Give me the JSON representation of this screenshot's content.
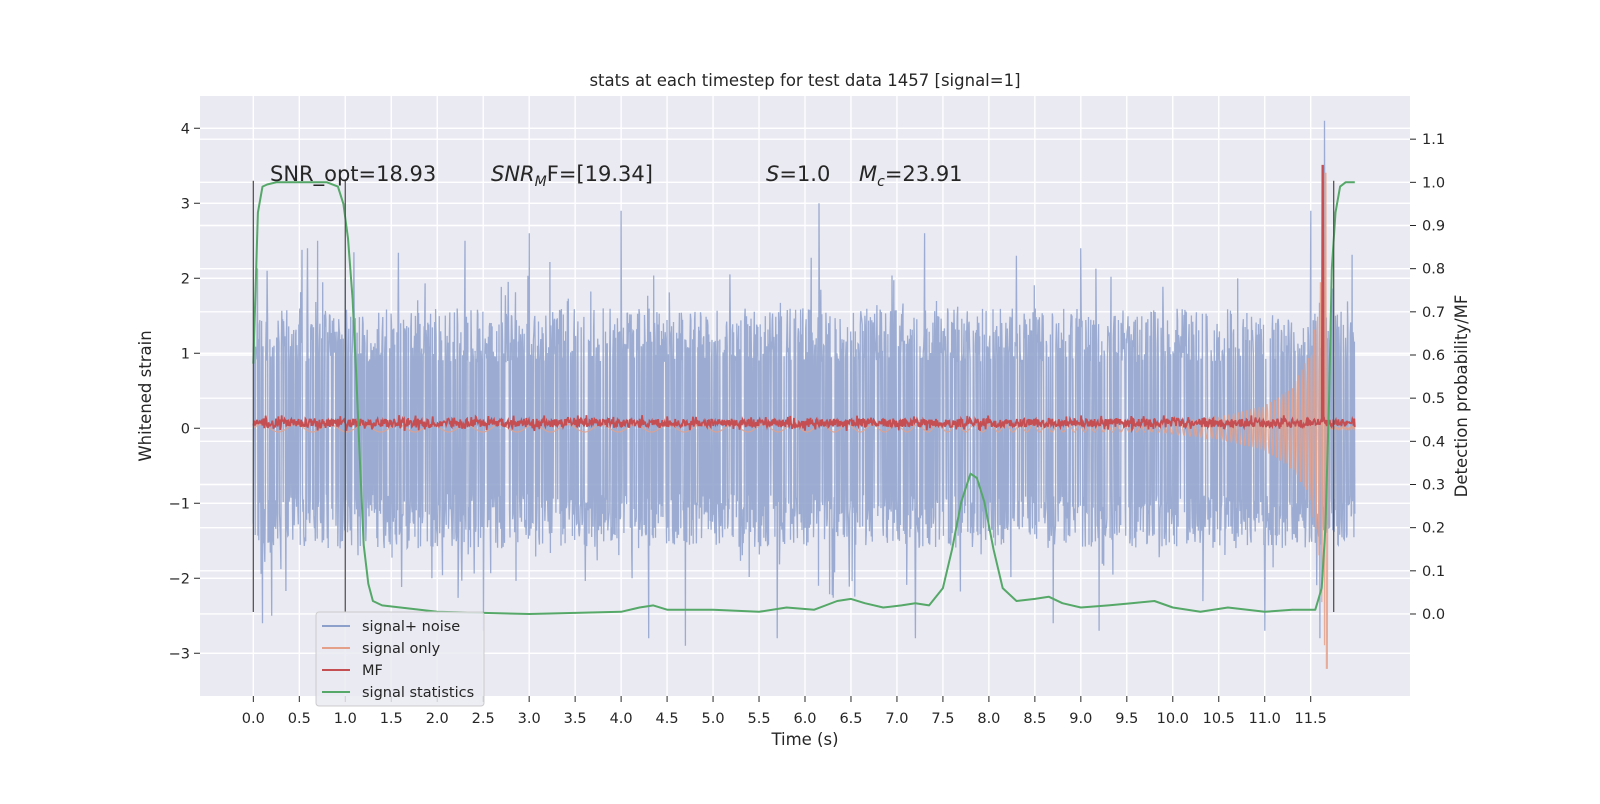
{
  "chart_data": {
    "type": "line",
    "title": "stats at each timestep for test data 1457 [signal=1]",
    "xlabel": "Time (s)",
    "ylabel": "Whitened strain",
    "ylabel_right": "Detection probability/MF",
    "xlim": [
      -0.58,
      12.58
    ],
    "ylim": [
      -3.57,
      4.43
    ],
    "ylim_right": [
      -0.19,
      1.2
    ],
    "x_ticks": [
      "0.0",
      "0.5",
      "1.0",
      "1.5",
      "2.0",
      "2.5",
      "3.0",
      "3.5",
      "4.0",
      "4.5",
      "5.0",
      "5.5",
      "6.0",
      "6.5",
      "7.0",
      "7.5",
      "8.0",
      "8.5",
      "9.0",
      "9.5",
      "10.0",
      "10.5",
      "11.0",
      "11.5"
    ],
    "y_ticks": [
      "4",
      "3",
      "2",
      "1",
      "0",
      "−1",
      "−2",
      "−3"
    ],
    "y_ticks_right": [
      "1.1",
      "1.0",
      "0.9",
      "0.8",
      "0.7",
      "0.6",
      "0.5",
      "0.4",
      "0.3",
      "0.2",
      "0.1",
      "0.0"
    ],
    "grid": true,
    "legend_position": "lower-left",
    "annotations": [
      {
        "text": "SNR_opt=18.93"
      },
      {
        "text": "SNR",
        "sub": "M",
        "tail": "F=[19.34]",
        "italic": true
      },
      {
        "text": "S",
        "tail": "=1.0",
        "italic": true
      },
      {
        "text": "M",
        "sub": "c",
        "tail": "=23.91",
        "italic": true
      }
    ],
    "vertical_markers": [
      {
        "x": 0.0,
        "y_range": [
          -2.45,
          3.3
        ]
      },
      {
        "x": 1.0,
        "y_range": [
          -2.45,
          3.3
        ]
      },
      {
        "x": 11.75,
        "y_range": [
          -2.45,
          3.3
        ]
      }
    ],
    "series": [
      {
        "name": "signal+ noise",
        "color": "#8da0cb",
        "axis": "left",
        "x_range": [
          0,
          11.98
        ],
        "typical_envelope": [
          -1.6,
          1.6
        ],
        "peaks": [
          [
            0.15,
            2.1
          ],
          [
            0.7,
            2.5
          ],
          [
            1.0,
            2.0
          ],
          [
            2.3,
            2.5
          ],
          [
            3.0,
            2.6
          ],
          [
            4.0,
            2.9
          ],
          [
            6.15,
            3.0
          ],
          [
            7.3,
            2.6
          ],
          [
            8.3,
            2.3
          ],
          [
            9.0,
            2.4
          ],
          [
            11.5,
            2.9
          ],
          [
            11.65,
            4.1
          ]
        ],
        "troughs": [
          [
            0.1,
            -2.6
          ],
          [
            0.2,
            -2.5
          ],
          [
            2.5,
            -2.7
          ],
          [
            4.3,
            -2.8
          ],
          [
            4.7,
            -2.9
          ],
          [
            5.7,
            -2.8
          ],
          [
            7.2,
            -2.8
          ],
          [
            8.7,
            -2.6
          ],
          [
            9.2,
            -2.7
          ],
          [
            11.0,
            -2.7
          ],
          [
            11.6,
            -2.8
          ]
        ]
      },
      {
        "name": "signal only",
        "color": "#e5a08a",
        "axis": "left",
        "description": "chirp",
        "x": [
          9.8,
          10.5,
          11.0,
          11.3,
          11.5,
          11.6,
          11.66,
          11.7
        ],
        "amplitude": [
          0.05,
          0.15,
          0.3,
          0.55,
          1.0,
          1.8,
          3.4,
          0.0
        ],
        "min_at_merger": -3.2
      },
      {
        "name": "MF",
        "color": "#c44e52",
        "axis": "left",
        "x_range": [
          0,
          11.98
        ],
        "baseline": 0.07,
        "spread": 0.07,
        "spike": [
          11.63,
          3.5
        ]
      },
      {
        "name": "signal statistics",
        "color": "#55a868",
        "axis": "right",
        "x": [
          0.0,
          0.05,
          0.1,
          0.15,
          0.25,
          0.4,
          0.6,
          0.8,
          0.92,
          0.98,
          1.03,
          1.08,
          1.12,
          1.16,
          1.2,
          1.25,
          1.3,
          1.4,
          1.6,
          2.0,
          3.0,
          4.0,
          4.2,
          4.35,
          4.5,
          5.0,
          5.5,
          5.8,
          6.1,
          6.35,
          6.5,
          6.65,
          6.85,
          7.05,
          7.2,
          7.35,
          7.5,
          7.6,
          7.7,
          7.8,
          7.87,
          7.95,
          8.05,
          8.15,
          8.3,
          8.5,
          8.65,
          8.8,
          9.0,
          9.3,
          9.55,
          9.8,
          10.0,
          10.3,
          10.6,
          11.0,
          11.3,
          11.55,
          11.62,
          11.66,
          11.7,
          11.73,
          11.77,
          11.82,
          11.88,
          11.93,
          11.98
        ],
        "y": [
          0.58,
          0.93,
          0.99,
          0.995,
          1.0,
          1.0,
          1.0,
          1.0,
          0.99,
          0.95,
          0.87,
          0.73,
          0.55,
          0.35,
          0.16,
          0.07,
          0.03,
          0.02,
          0.015,
          0.005,
          0.0,
          0.005,
          0.015,
          0.02,
          0.01,
          0.01,
          0.005,
          0.015,
          0.01,
          0.03,
          0.035,
          0.025,
          0.015,
          0.02,
          0.025,
          0.02,
          0.06,
          0.15,
          0.26,
          0.325,
          0.315,
          0.26,
          0.15,
          0.06,
          0.03,
          0.035,
          0.04,
          0.025,
          0.015,
          0.02,
          0.025,
          0.03,
          0.015,
          0.005,
          0.015,
          0.005,
          0.01,
          0.01,
          0.06,
          0.2,
          0.5,
          0.8,
          0.93,
          0.99,
          1.0,
          1.0,
          1.0
        ]
      }
    ]
  }
}
